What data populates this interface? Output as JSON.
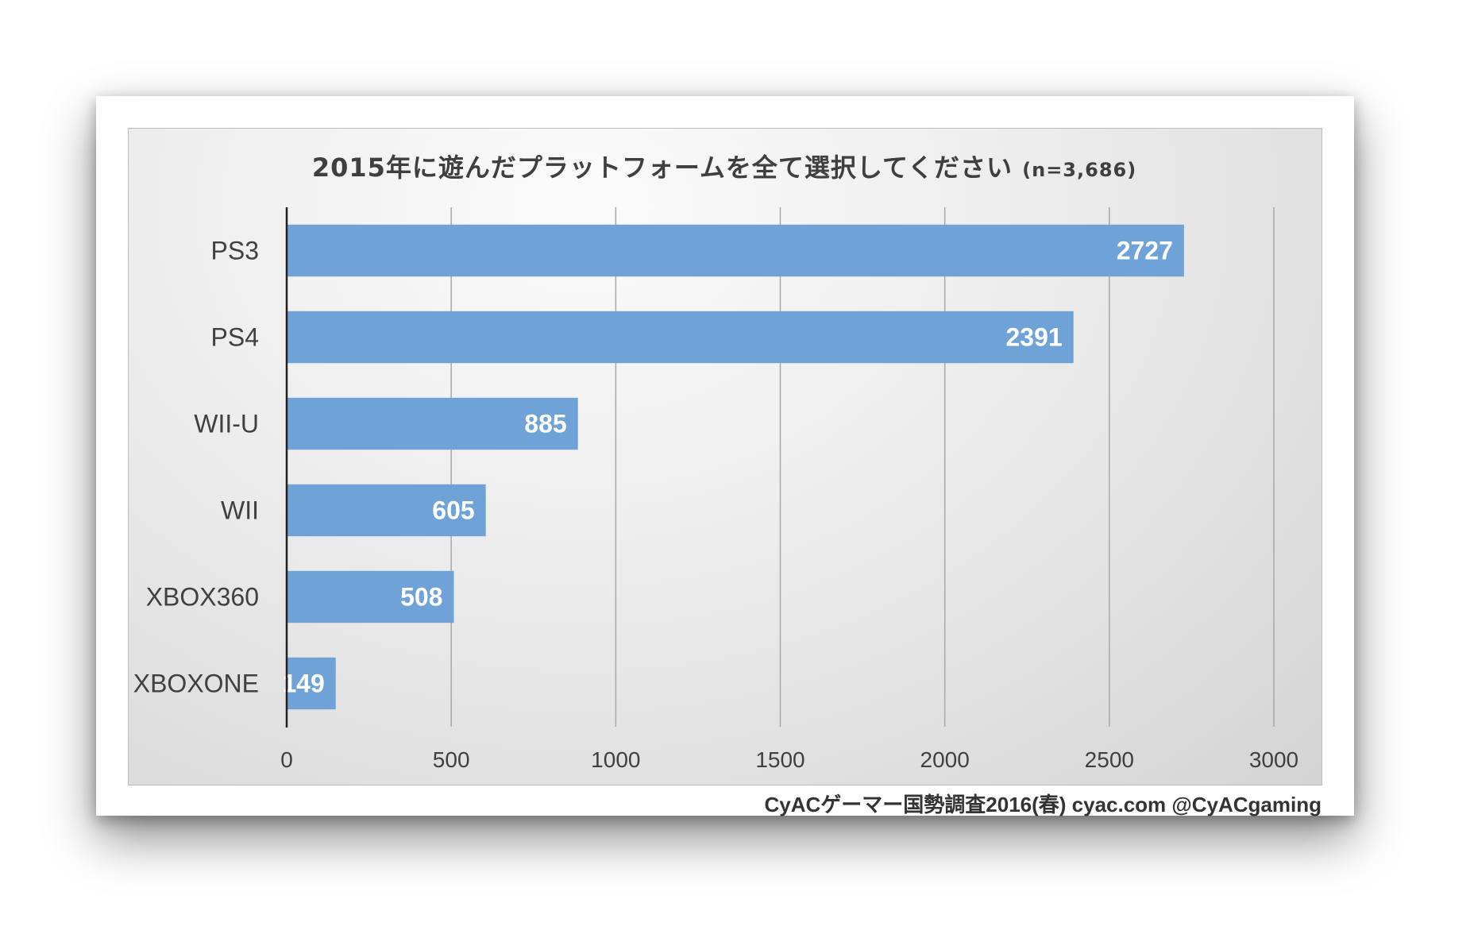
{
  "chart_data": {
    "type": "bar",
    "orientation": "horizontal",
    "title": "2015年に遊んだプラットフォームを全て選択してください",
    "subtitle": "(n=3,686)",
    "categories": [
      "PS3",
      "PS4",
      "WII-U",
      "WII",
      "XBOX360",
      "XBOXONE"
    ],
    "values": [
      2727,
      2391,
      885,
      605,
      508,
      149
    ],
    "xlim": [
      0,
      3000
    ],
    "xticks": [
      "0",
      "500",
      "1000",
      "1500",
      "2000",
      "2500",
      "3000"
    ],
    "grid": true,
    "bar_color": "#6fa3d7",
    "label_color": "#ffffff"
  },
  "credit": "CyACゲーマー国勢調査2016(春) cyac.com @CyACgaming"
}
